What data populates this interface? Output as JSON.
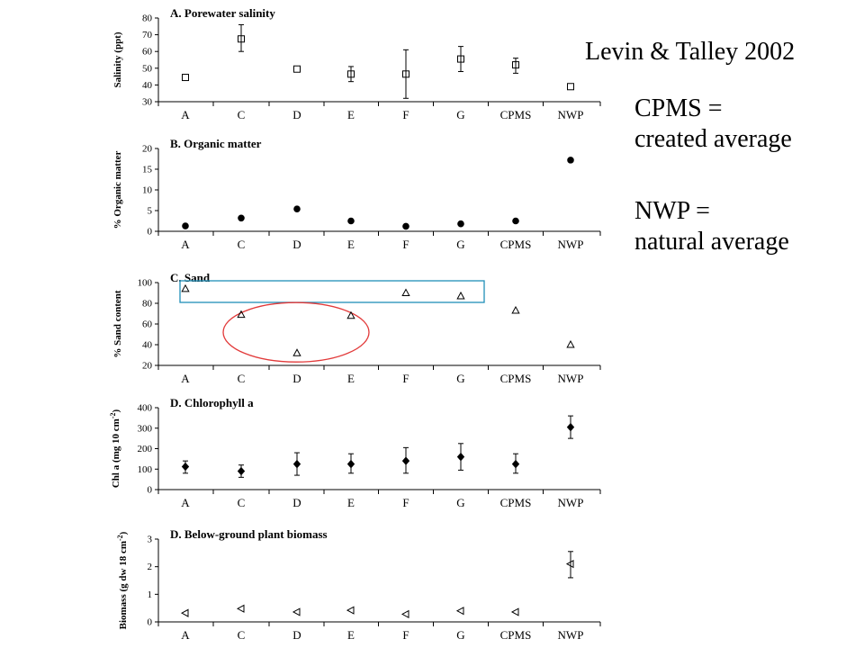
{
  "slide": {
    "citation": "Levin & Talley 2002",
    "note_cpms_line1": "CPMS =",
    "note_cpms_line2": "created average",
    "note_nwp_line1": "NWP =",
    "note_nwp_line2": "natural average"
  },
  "colors": {
    "highlight_box": "#1f8fb8",
    "highlight_ellipse": "#e23a3a",
    "ink": "#000000"
  },
  "chart_data": [
    {
      "type": "scatter",
      "title": "A. Porewater salinity",
      "ylabel": "Salinity (ppt)",
      "categories": [
        "A",
        "C",
        "D",
        "E",
        "F",
        "G",
        "CPMS",
        "NWP"
      ],
      "ylim": [
        30,
        80
      ],
      "yticks": [
        30,
        40,
        50,
        60,
        70,
        80
      ],
      "marker": "square-open",
      "values": [
        44.5,
        67.5,
        49.5,
        46.5,
        46.5,
        55.5,
        52,
        39
      ],
      "error_low": [
        null,
        60,
        null,
        42,
        32,
        48,
        47,
        null
      ],
      "error_high": [
        null,
        76,
        null,
        51,
        61,
        63,
        56,
        null
      ]
    },
    {
      "type": "scatter",
      "title": "B. Organic matter",
      "ylabel": "% Organic matter",
      "categories": [
        "A",
        "C",
        "D",
        "E",
        "F",
        "G",
        "CPMS",
        "NWP"
      ],
      "ylim": [
        0,
        20
      ],
      "yticks": [
        0,
        5,
        10,
        15,
        20
      ],
      "marker": "circle-half",
      "values": [
        1.3,
        3.2,
        5.4,
        2.5,
        1.2,
        1.8,
        2.5,
        17.2
      ]
    },
    {
      "type": "scatter",
      "title": "C. Sand",
      "ylabel": "% Sand content",
      "categories": [
        "A",
        "C",
        "D",
        "E",
        "F",
        "G",
        "CPMS",
        "NWP"
      ],
      "ylim": [
        20,
        100
      ],
      "yticks": [
        20,
        40,
        60,
        80,
        100
      ],
      "marker": "triangle-up-open",
      "values": [
        94,
        69,
        32,
        68,
        90,
        87,
        73,
        40
      ],
      "highlights": {
        "box_categories": [
          "A",
          "G"
        ],
        "ellipse_categories": [
          "C",
          "E"
        ]
      }
    },
    {
      "type": "scatter",
      "title": "D. Chlorophyll a",
      "ylabel": "Chl a (mg 10 cm",
      "ylabel_sup": "-2",
      "ylabel_close": ")",
      "categories": [
        "A",
        "C",
        "D",
        "E",
        "F",
        "G",
        "CPMS",
        "NWP"
      ],
      "ylim": [
        0,
        400
      ],
      "yticks": [
        0,
        100,
        200,
        300,
        400
      ],
      "marker": "diamond-filled",
      "values": [
        112,
        90,
        125,
        125,
        140,
        160,
        125,
        305
      ],
      "error_low": [
        80,
        60,
        70,
        80,
        80,
        95,
        80,
        250
      ],
      "error_high": [
        140,
        120,
        180,
        175,
        205,
        225,
        175,
        360
      ]
    },
    {
      "type": "scatter",
      "title": "D. Below-ground plant biomass",
      "ylabel": "Biomass (g dw 18 cm",
      "ylabel_sup": "-2",
      "ylabel_close": ")",
      "categories": [
        "A",
        "C",
        "D",
        "E",
        "F",
        "G",
        "CPMS",
        "NWP"
      ],
      "ylim": [
        0,
        3
      ],
      "yticks": [
        0,
        1,
        2,
        3
      ],
      "marker": "triangle-left-open",
      "values": [
        0.32,
        0.48,
        0.36,
        0.42,
        0.28,
        0.4,
        0.36,
        2.1
      ],
      "error_low": [
        null,
        null,
        null,
        null,
        null,
        null,
        null,
        1.6
      ],
      "error_high": [
        null,
        null,
        null,
        null,
        null,
        null,
        null,
        2.55
      ]
    }
  ]
}
